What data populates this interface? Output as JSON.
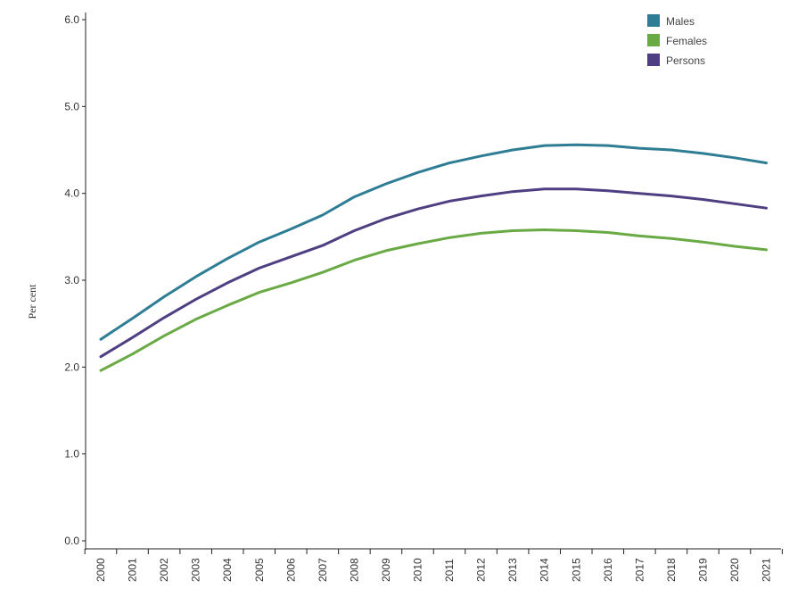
{
  "chart_data": {
    "type": "line",
    "title": "",
    "xlabel": "",
    "ylabel": "Per cent",
    "x": [
      "2000",
      "2001",
      "2002",
      "2003",
      "2004",
      "2005",
      "2006",
      "2007",
      "2008",
      "2009",
      "2010",
      "2011",
      "2012",
      "2013",
      "2014",
      "2015",
      "2016",
      "2017",
      "2018",
      "2019",
      "2020",
      "2021"
    ],
    "yticks": [
      "0.0",
      "1.0",
      "2.0",
      "3.0",
      "4.0",
      "5.0",
      "6.0"
    ],
    "ylim": [
      0,
      6
    ],
    "legend_position": "top-right",
    "grid": false,
    "series": [
      {
        "name": "Males",
        "color": "#2e7d94",
        "values": [
          2.32,
          2.56,
          2.81,
          3.04,
          3.25,
          3.44,
          3.59,
          3.75,
          3.96,
          4.11,
          4.24,
          4.35,
          4.43,
          4.5,
          4.55,
          4.56,
          4.55,
          4.52,
          4.5,
          4.46,
          4.41,
          4.35
        ]
      },
      {
        "name": "Females",
        "color": "#6aaa45",
        "values": [
          1.96,
          2.15,
          2.36,
          2.55,
          2.71,
          2.86,
          2.97,
          3.09,
          3.23,
          3.34,
          3.42,
          3.49,
          3.54,
          3.57,
          3.58,
          3.57,
          3.55,
          3.51,
          3.48,
          3.44,
          3.39,
          3.35
        ]
      },
      {
        "name": "Persons",
        "color": "#4f3f82",
        "values": [
          2.12,
          2.34,
          2.57,
          2.78,
          2.97,
          3.14,
          3.27,
          3.4,
          3.57,
          3.71,
          3.82,
          3.91,
          3.97,
          4.02,
          4.05,
          4.05,
          4.03,
          4.0,
          3.97,
          3.93,
          3.88,
          3.83
        ]
      }
    ]
  }
}
